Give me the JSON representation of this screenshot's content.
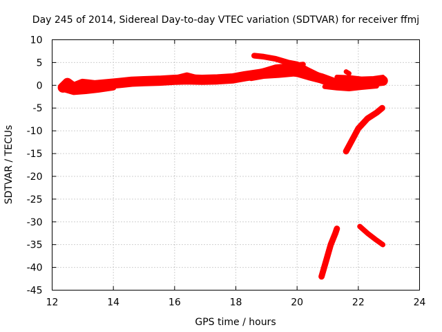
{
  "chart_data": {
    "type": "scatter",
    "title": "Day 245 of 2014, Sidereal Day-to-day VTEC variation (SDTVAR) for receiver ffmj",
    "xlabel": "GPS time / hours",
    "ylabel": "SDTVAR / TECUs",
    "xlim": [
      12,
      24
    ],
    "ylim": [
      -45,
      10
    ],
    "xticks": [
      12,
      14,
      16,
      18,
      20,
      22,
      24
    ],
    "yticks": [
      10,
      5,
      0,
      -5,
      -10,
      -15,
      -20,
      -25,
      -30,
      -35,
      -40,
      -45
    ],
    "grid": true,
    "color": "#ff0000",
    "series": [
      {
        "x": [
          12.35,
          12.5,
          12.7,
          13.0,
          13.4,
          13.9,
          14.2,
          14.6,
          15.0,
          15.5,
          16.0,
          16.4,
          16.9,
          17.4,
          17.9,
          18.3,
          18.8,
          19.2,
          19.6,
          20.0,
          20.4,
          20.8,
          21.2,
          21.6,
          22.0,
          22.5,
          22.8
        ],
        "y": [
          -0.5,
          0.5,
          -0.5,
          0.3,
          0.0,
          0.3,
          0.5,
          0.8,
          0.9,
          1.0,
          1.2,
          1.3,
          1.2,
          1.3,
          1.5,
          2.0,
          2.5,
          3.0,
          3.3,
          3.0,
          2.2,
          1.5,
          0.5,
          0.3,
          0.5,
          0.8,
          1.0
        ],
        "w": 1.8
      },
      {
        "x": [
          12.35,
          12.7,
          13.1,
          13.5,
          14.0
        ],
        "y": [
          -0.8,
          -1.5,
          -1.3,
          -1.0,
          -0.5
        ],
        "w": 0.8
      },
      {
        "x": [
          15.8,
          16.1,
          16.4,
          16.8
        ],
        "y": [
          1.0,
          1.7,
          2.2,
          1.5
        ],
        "w": 0.8
      },
      {
        "x": [
          18.6,
          18.9,
          19.3,
          19.7,
          20.0,
          20.3,
          20.6,
          21.0
        ],
        "y": [
          6.5,
          6.3,
          5.8,
          5.0,
          4.6,
          3.5,
          2.5,
          1.3
        ],
        "w": 0.8
      },
      {
        "x": [
          18.3,
          18.8,
          19.3,
          19.8,
          20.2
        ],
        "y": [
          2.0,
          3.0,
          4.0,
          4.3,
          4.6
        ],
        "w": 0.7
      },
      {
        "x": [
          18.5,
          18.9,
          19.4,
          19.9,
          20.4,
          20.8
        ],
        "y": [
          1.5,
          2.0,
          2.2,
          2.5,
          2.0,
          1.0
        ],
        "w": 0.7
      },
      {
        "x": [
          21.3,
          21.7,
          22.1,
          22.5,
          22.8
        ],
        "y": [
          1.8,
          1.7,
          1.4,
          1.5,
          1.8
        ],
        "w": 0.6
      },
      {
        "x": [
          20.9,
          21.3,
          21.7,
          22.1,
          22.6
        ],
        "y": [
          -0.3,
          -0.6,
          -0.8,
          -0.5,
          -0.2
        ],
        "w": 0.6
      },
      {
        "x": [
          21.6,
          21.7
        ],
        "y": [
          3.0,
          2.6
        ],
        "w": 0.6
      },
      {
        "x": [
          21.6,
          21.8,
          22.0,
          22.3,
          22.6,
          22.78
        ],
        "y": [
          -14.5,
          -12.0,
          -9.5,
          -7.3,
          -6.0,
          -5.0
        ],
        "w": 0.9
      },
      {
        "x": [
          20.8,
          20.95,
          21.1,
          21.25,
          21.3
        ],
        "y": [
          -42.0,
          -38.5,
          -35.0,
          -32.5,
          -31.5
        ],
        "w": 0.9
      },
      {
        "x": [
          22.05,
          22.3,
          22.55,
          22.8
        ],
        "y": [
          -31.0,
          -32.5,
          -33.8,
          -35.0
        ],
        "w": 0.7
      }
    ]
  }
}
